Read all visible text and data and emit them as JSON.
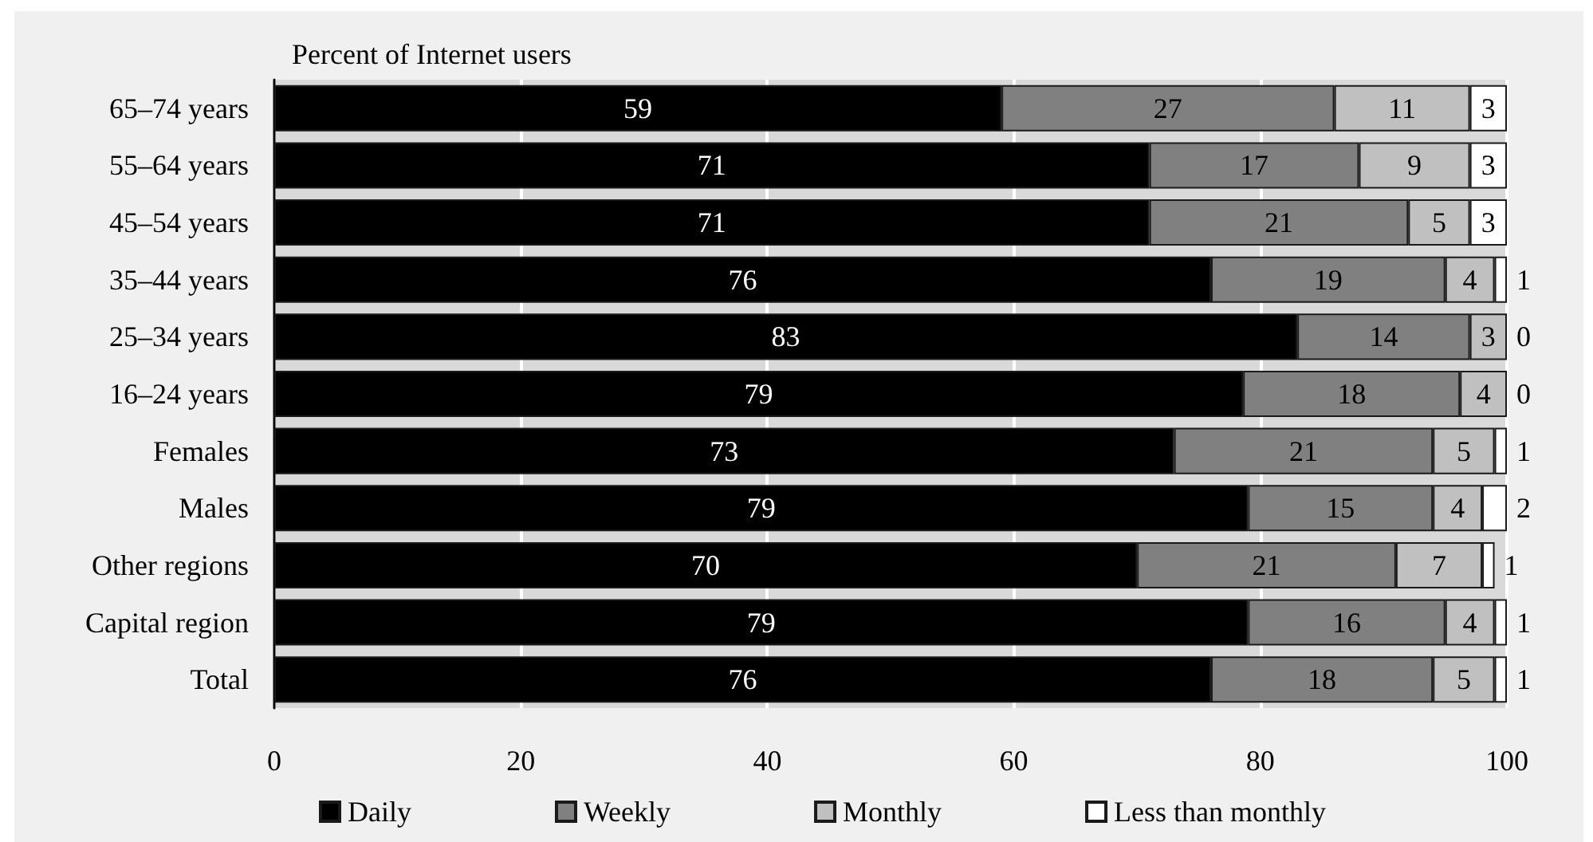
{
  "chart_data": {
    "type": "bar",
    "orientation": "horizontal",
    "stacked": true,
    "xlabel": "Percent of Internet users",
    "categories": [
      "65–74 years",
      "55–64 years",
      "45–54 years",
      "35–44 years",
      "25–34 years",
      "16–24 years",
      "Females",
      "Males",
      "Other regions",
      "Capital region",
      "Total"
    ],
    "series": [
      {
        "name": "Daily",
        "color": "#000000",
        "values": [
          59,
          71,
          71,
          76,
          83,
          78.6,
          73,
          79,
          70,
          79,
          76
        ],
        "value_labels": [
          "59",
          "71",
          "71",
          "76",
          "83",
          "79",
          "73",
          "79",
          "70",
          "79",
          "76"
        ]
      },
      {
        "name": "Weekly",
        "color": "#808080",
        "values": [
          27,
          17,
          21,
          19,
          14,
          17.6,
          21,
          15,
          21,
          16,
          18
        ],
        "value_labels": [
          "27",
          "17",
          "21",
          "19",
          "14",
          "18",
          "21",
          "15",
          "21",
          "16",
          "18"
        ]
      },
      {
        "name": "Monthly",
        "color": "#c0c0c0",
        "values": [
          11,
          9,
          5,
          4,
          3,
          3.8,
          5,
          4,
          7,
          4,
          5
        ],
        "value_labels": [
          "11",
          "9",
          "5",
          "4",
          "3",
          "4",
          "5",
          "4",
          "7",
          "4",
          "5"
        ]
      },
      {
        "name": "Less than monthly",
        "color": "#ffffff",
        "values": [
          3,
          3,
          3,
          1,
          0,
          0,
          1,
          2,
          1,
          1,
          1
        ],
        "value_labels": [
          "3",
          "3",
          "3",
          "1",
          "0",
          "0",
          "1",
          "2",
          "1",
          "1",
          "1"
        ]
      }
    ],
    "xlim": [
      0,
      100
    ],
    "xticks": [
      0,
      20,
      40,
      60,
      80,
      100
    ],
    "grid": "x",
    "legend": "bottom"
  }
}
